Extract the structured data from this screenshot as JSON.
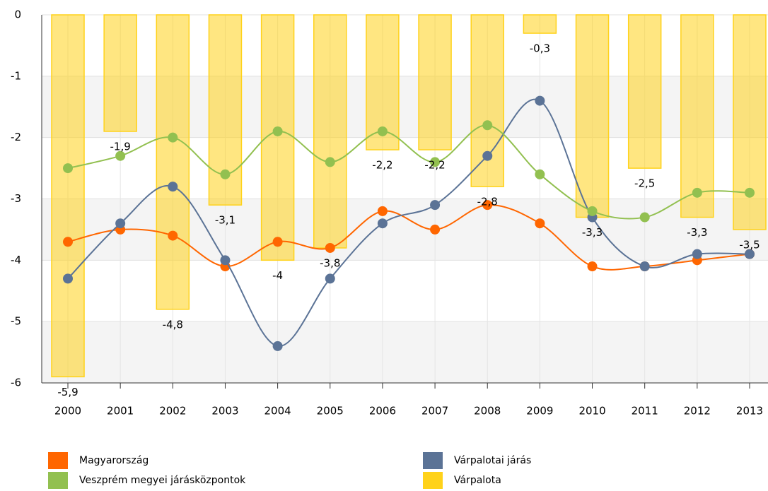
{
  "chart_data": {
    "type": "bar-line",
    "categories": [
      "2000",
      "2001",
      "2002",
      "2003",
      "2004",
      "2005",
      "2006",
      "2007",
      "2008",
      "2009",
      "2010",
      "2011",
      "2012",
      "2013"
    ],
    "ylim": [
      -6,
      0
    ],
    "yticks": [
      0,
      -1,
      -2,
      -3,
      -4,
      -5,
      -6
    ],
    "grid": true,
    "series": [
      {
        "name": "Magyarország",
        "type": "line",
        "color": "#ff6600",
        "values": [
          -3.7,
          -3.5,
          -3.6,
          -4.1,
          -3.7,
          -3.8,
          -3.2,
          -3.5,
          -3.1,
          -3.4,
          -4.1,
          -4.1,
          -4.0,
          -3.9
        ]
      },
      {
        "name": "Várpalotai járás",
        "type": "line",
        "color": "#5b7396",
        "values": [
          -4.3,
          -3.4,
          -2.8,
          -4.0,
          -5.4,
          -4.3,
          -3.4,
          -3.1,
          -2.3,
          -1.4,
          -3.3,
          -4.1,
          -3.9,
          -3.9
        ]
      },
      {
        "name": "Veszprém megyei járásközpontok",
        "type": "line",
        "color": "#92c050",
        "values": [
          -2.5,
          -2.3,
          -2.0,
          -2.6,
          -1.9,
          -2.4,
          -1.9,
          -2.4,
          -1.8,
          -2.6,
          -3.2,
          -3.3,
          -2.9,
          -2.9
        ]
      },
      {
        "name": "Várpalota",
        "type": "bar",
        "color": "#ffd21a",
        "values": [
          -5.9,
          -1.9,
          -4.8,
          -3.1,
          -4,
          -3.8,
          -2.2,
          -2.2,
          -2.8,
          -0.3,
          -3.3,
          -2.5,
          -3.3,
          -3.5
        ],
        "value_labels": [
          "-5,9",
          "-1,9",
          "-4,8",
          "-3,1",
          "-4",
          "-3,8",
          "-2,2",
          "-2,2",
          "-2,8",
          "-0,3",
          "-3,3",
          "-2,5",
          "-3,3",
          "-3,5"
        ]
      }
    ]
  }
}
